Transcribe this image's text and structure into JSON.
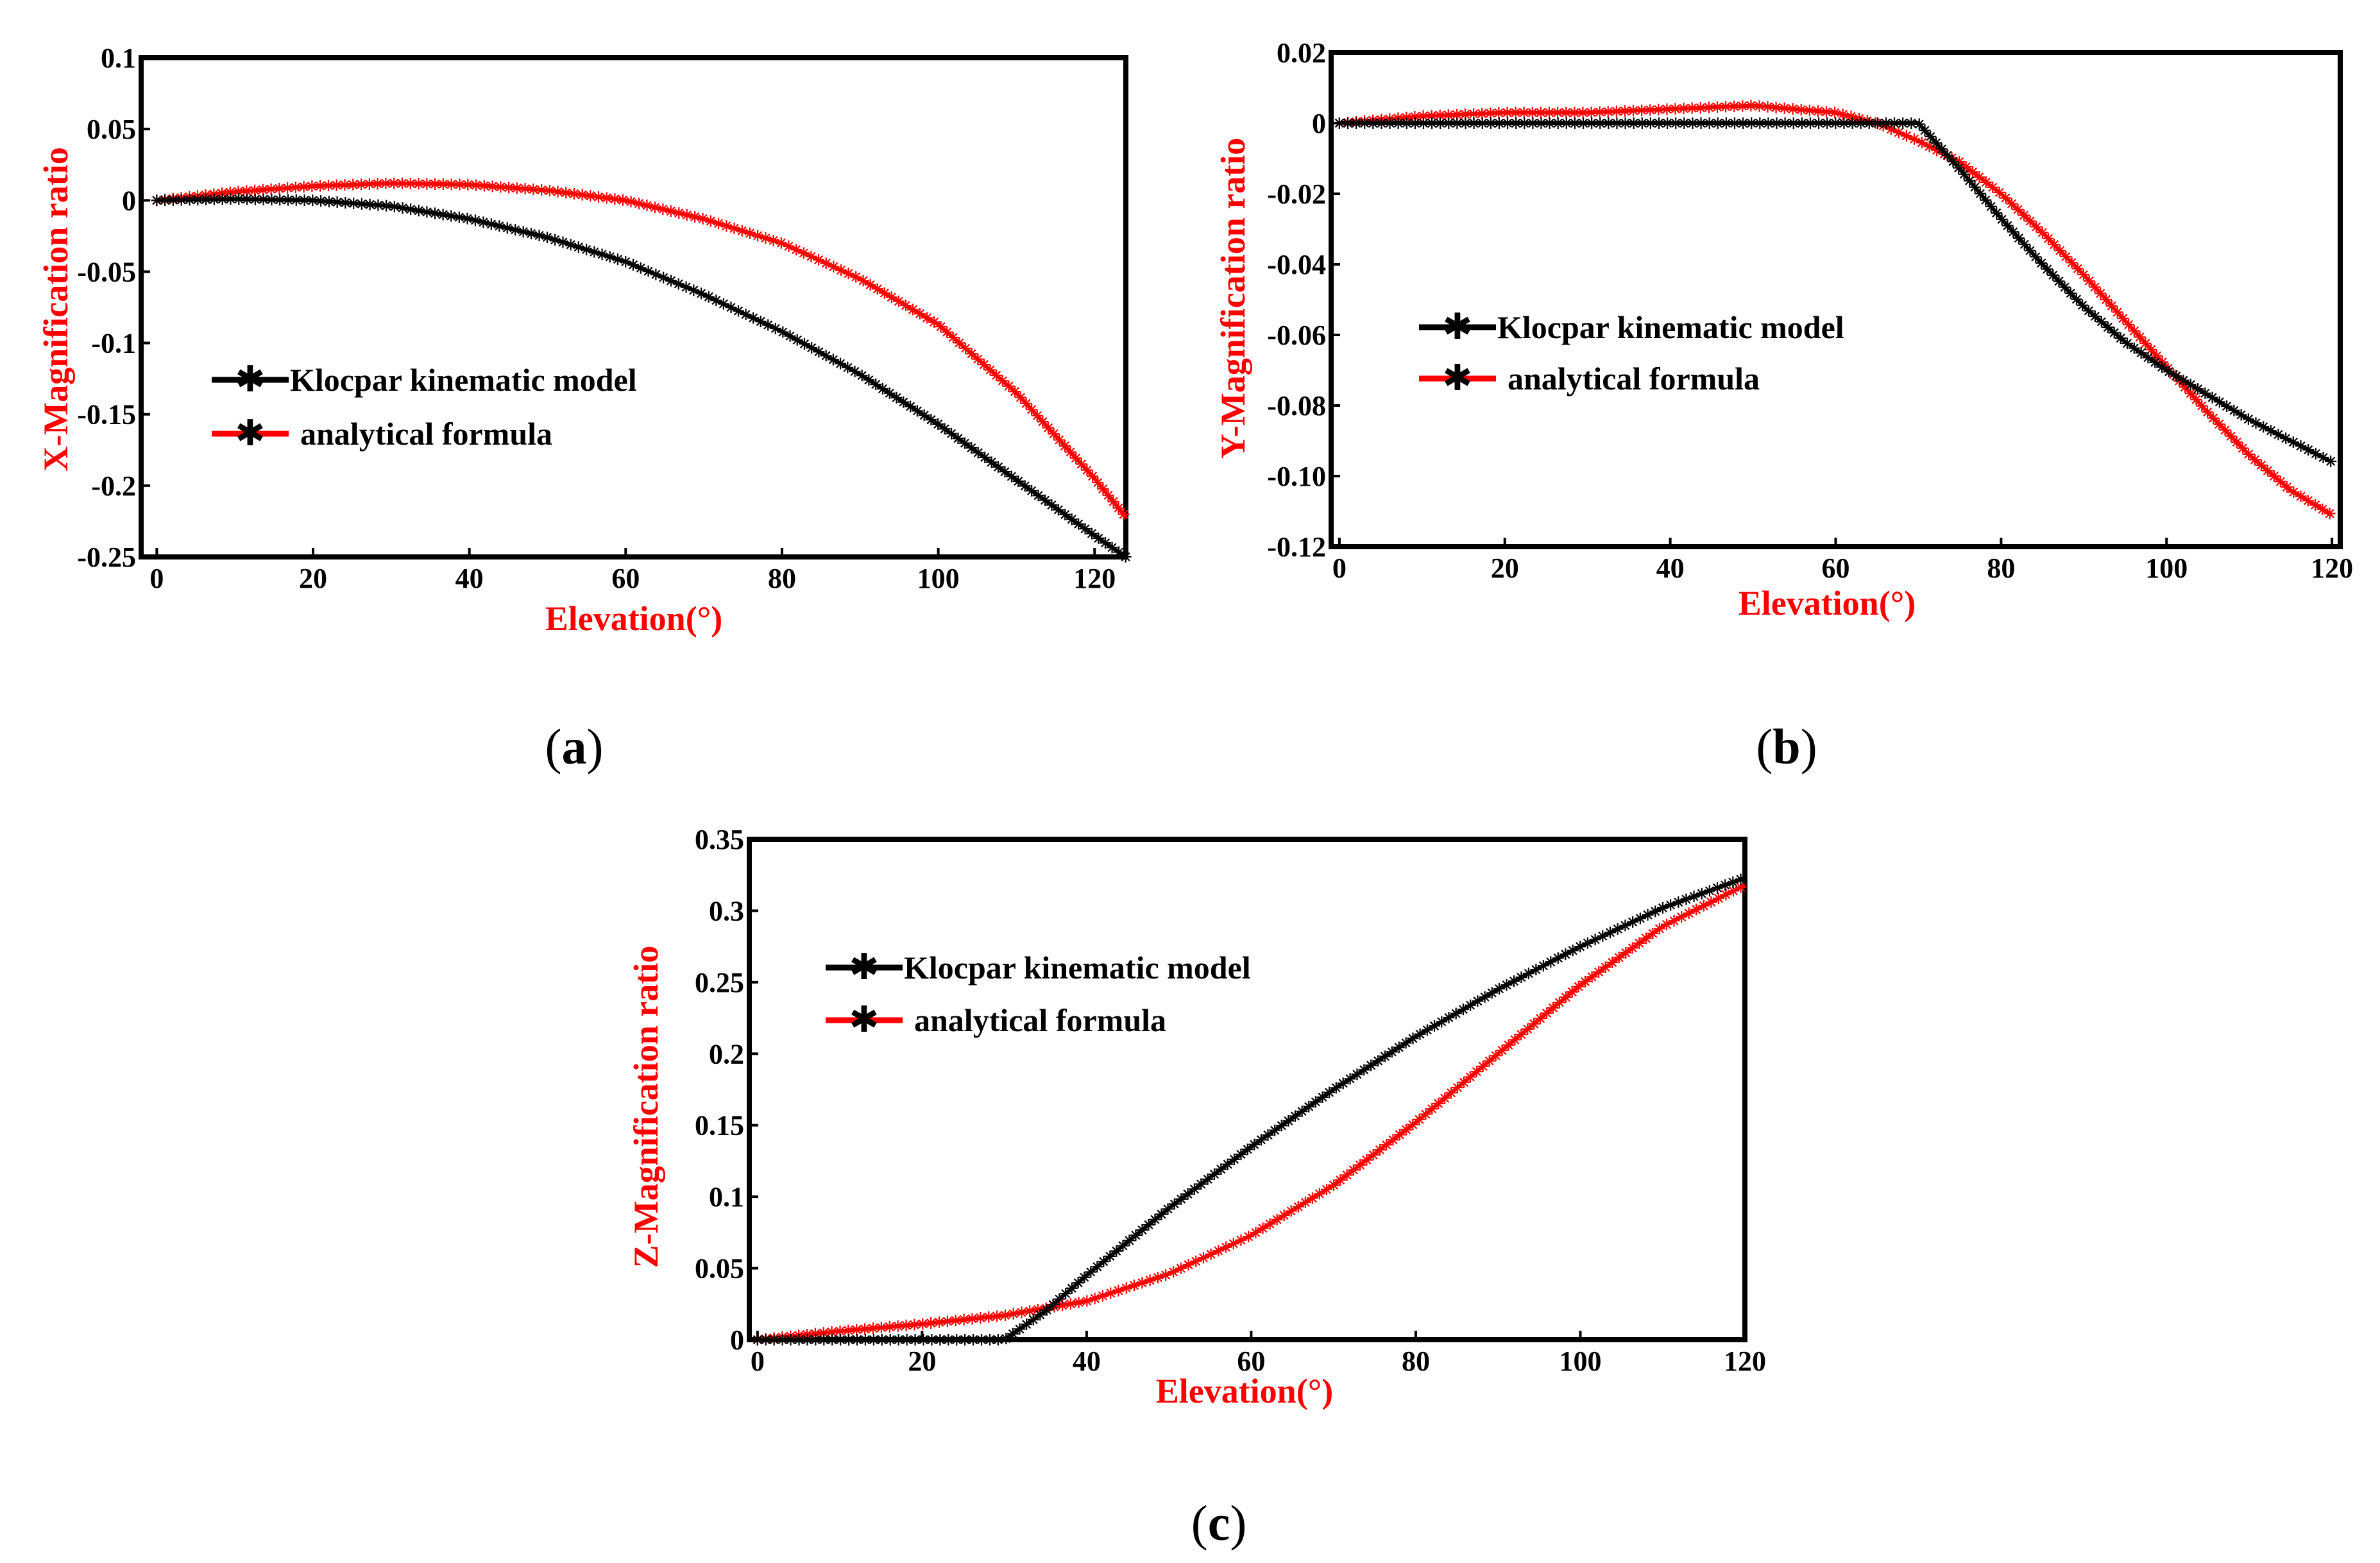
{
  "colors": {
    "black_series": "#000000",
    "red_series": "#ff0000",
    "axis_label": "#ff0000"
  },
  "chart_data": [
    {
      "id": "a",
      "type": "line",
      "caption_letter": "a",
      "xlabel": "Elevation(°)",
      "ylabel": "X-Magnification ratio",
      "xlim": [
        -2,
        124
      ],
      "ylim": [
        -0.25,
        0.1
      ],
      "xticks": [
        {
          "v": 0,
          "label": "0"
        },
        {
          "v": 20,
          "label": "20"
        },
        {
          "v": 40,
          "label": "40"
        },
        {
          "v": 60,
          "label": "60"
        },
        {
          "v": 80,
          "label": "80"
        },
        {
          "v": 100,
          "label": "100"
        },
        {
          "v": 120,
          "label": "120"
        }
      ],
      "yticks": [
        {
          "v": 0.1,
          "label": "0.1"
        },
        {
          "v": 0.05,
          "label": "0.05"
        },
        {
          "v": 0,
          "label": "0"
        },
        {
          "v": -0.05,
          "label": "-0.05"
        },
        {
          "v": -0.1,
          "label": "-0.1"
        },
        {
          "v": -0.15,
          "label": "-0.15"
        },
        {
          "v": -0.2,
          "label": "-0.2"
        },
        {
          "v": -0.25,
          "label": "-0.25"
        }
      ],
      "legend_position": "center-left",
      "series": [
        {
          "name": "Klocpar kinematic model",
          "color": "black",
          "x": [
            0,
            10,
            20,
            30,
            40,
            50,
            60,
            70,
            80,
            90,
            100,
            110,
            120,
            124
          ],
          "y": [
            0,
            0.001,
            0,
            -0.004,
            -0.013,
            -0.026,
            -0.043,
            -0.066,
            -0.092,
            -0.122,
            -0.157,
            -0.196,
            -0.235,
            -0.25
          ]
        },
        {
          "name": "analytical formula",
          "color": "red",
          "x": [
            0,
            10,
            20,
            30,
            40,
            50,
            60,
            70,
            80,
            90,
            100,
            110,
            120,
            124
          ],
          "y": [
            0,
            0.006,
            0.01,
            0.012,
            0.011,
            0.007,
            0,
            -0.013,
            -0.03,
            -0.055,
            -0.087,
            -0.135,
            -0.195,
            -0.222
          ]
        }
      ]
    },
    {
      "id": "b",
      "type": "line",
      "caption_letter": "b",
      "xlabel": "Elevation(°)",
      "ylabel": "Y-Magnification ratio",
      "xlim": [
        -1,
        121
      ],
      "ylim": [
        -0.12,
        0.02
      ],
      "xticks": [
        {
          "v": 0,
          "label": "0"
        },
        {
          "v": 20,
          "label": "20"
        },
        {
          "v": 40,
          "label": "40"
        },
        {
          "v": 60,
          "label": "60"
        },
        {
          "v": 80,
          "label": "80"
        },
        {
          "v": 100,
          "label": "100"
        },
        {
          "v": 120,
          "label": "120"
        }
      ],
      "yticks": [
        {
          "v": 0.02,
          "label": "0.02"
        },
        {
          "v": 0,
          "label": "0"
        },
        {
          "v": -0.02,
          "label": "-0.02"
        },
        {
          "v": -0.04,
          "label": "-0.04"
        },
        {
          "v": -0.06,
          "label": "-0.06"
        },
        {
          "v": -0.08,
          "label": "-0.08"
        },
        {
          "v": -0.1,
          "label": "-0.10"
        },
        {
          "v": -0.12,
          "label": "-0.12"
        }
      ],
      "legend_position": "center-left",
      "series": [
        {
          "name": "Klocpar kinematic model",
          "color": "black",
          "x": [
            0,
            10,
            20,
            30,
            40,
            50,
            60,
            65,
            70,
            75,
            80,
            85,
            90,
            95,
            100,
            105,
            110,
            115,
            120
          ],
          "y": [
            0,
            0,
            0,
            0,
            0,
            0,
            0,
            0,
            0,
            -0.013,
            -0.027,
            -0.04,
            -0.052,
            -0.062,
            -0.07,
            -0.077,
            -0.084,
            -0.09,
            -0.096
          ]
        },
        {
          "name": "analytical formula",
          "color": "red",
          "x": [
            0,
            10,
            20,
            30,
            40,
            50,
            60,
            65,
            70,
            75,
            80,
            85,
            90,
            95,
            100,
            105,
            110,
            115,
            120
          ],
          "y": [
            0,
            0.002,
            0.003,
            0.003,
            0.004,
            0.005,
            0.003,
            0,
            -0.005,
            -0.011,
            -0.02,
            -0.031,
            -0.043,
            -0.056,
            -0.069,
            -0.082,
            -0.094,
            -0.104,
            -0.111
          ]
        }
      ]
    },
    {
      "id": "c",
      "type": "line",
      "caption_letter": "c",
      "xlabel": "Elevation(°)",
      "ylabel": "Z-Magnification ratio",
      "xlim": [
        -1,
        120
      ],
      "ylim": [
        0,
        0.35
      ],
      "xticks": [
        {
          "v": 0,
          "label": "0"
        },
        {
          "v": 20,
          "label": "20"
        },
        {
          "v": 40,
          "label": "40"
        },
        {
          "v": 60,
          "label": "60"
        },
        {
          "v": 80,
          "label": "80"
        },
        {
          "v": 100,
          "label": "100"
        },
        {
          "v": 120,
          "label": "120"
        }
      ],
      "yticks": [
        {
          "v": 0.35,
          "label": "0.35"
        },
        {
          "v": 0.3,
          "label": "0.3"
        },
        {
          "v": 0.25,
          "label": "0.25"
        },
        {
          "v": 0.2,
          "label": "0.2"
        },
        {
          "v": 0.15,
          "label": "0.15"
        },
        {
          "v": 0.1,
          "label": "0.1"
        },
        {
          "v": 0.05,
          "label": "0.05"
        },
        {
          "v": 0,
          "label": "0"
        }
      ],
      "legend_position": "top-left",
      "series": [
        {
          "name": "Klocpar kinematic model",
          "color": "black",
          "x": [
            0,
            10,
            20,
            30,
            35,
            40,
            50,
            60,
            70,
            80,
            90,
            100,
            110,
            120
          ],
          "y": [
            0,
            0,
            0,
            0,
            0.02,
            0.045,
            0.092,
            0.135,
            0.175,
            0.212,
            0.245,
            0.275,
            0.302,
            0.323
          ]
        },
        {
          "name": "analytical formula",
          "color": "red",
          "x": [
            0,
            10,
            20,
            30,
            40,
            50,
            60,
            70,
            80,
            90,
            100,
            110,
            120
          ],
          "y": [
            0,
            0.006,
            0.011,
            0.017,
            0.027,
            0.046,
            0.073,
            0.108,
            0.152,
            0.2,
            0.248,
            0.289,
            0.318
          ]
        }
      ]
    }
  ]
}
